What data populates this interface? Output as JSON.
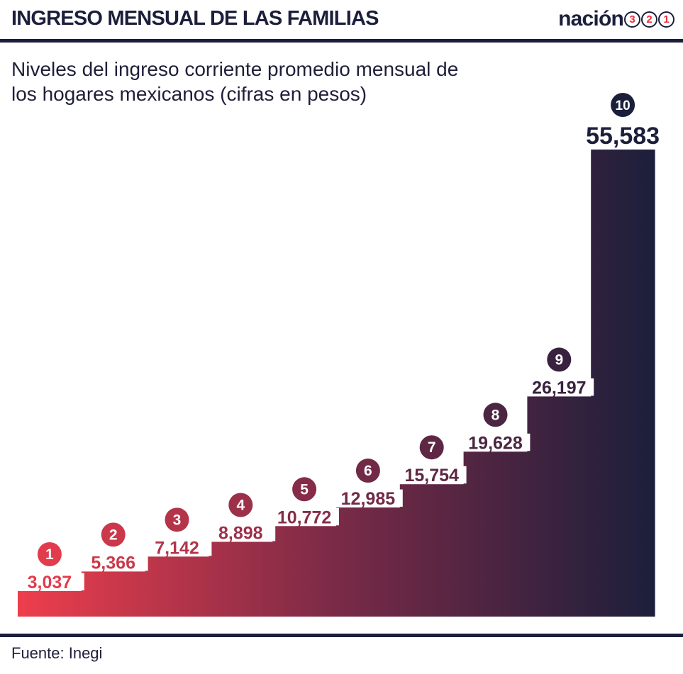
{
  "header": {
    "title": "INGRESO MENSUAL DE LAS FAMILIAS",
    "logo_word": "nación",
    "logo_numbers": [
      "3",
      "2",
      "1"
    ]
  },
  "subtitle": "Niveles del ingreso corriente promedio mensual de los hogares mexicanos (cifras en pesos)",
  "source": "Fuente: Inegi",
  "colors": {
    "gradient_start": "#ee3e4c",
    "gradient_mid": "#7a2a47",
    "gradient_end": "#1c1f3b",
    "rule": "#1c1f3b",
    "text": "#1f1f3a"
  },
  "chart_data": {
    "type": "bar",
    "categories": [
      "1",
      "2",
      "3",
      "4",
      "5",
      "6",
      "7",
      "8",
      "9",
      "10"
    ],
    "values": [
      3037,
      5366,
      7142,
      8898,
      10772,
      12985,
      15754,
      19628,
      26197,
      55583
    ],
    "value_labels": [
      "3,037",
      "5,366",
      "7,142",
      "8,898",
      "10,772",
      "12,985",
      "15,754",
      "19,628",
      "26,197",
      "55,583"
    ],
    "title": "INGRESO MENSUAL DE LAS FAMILIAS",
    "subtitle": "Niveles del ingreso corriente promedio mensual de los hogares mexicanos (cifras en pesos)",
    "xlabel": "",
    "ylabel": "",
    "grid": false,
    "legend": "none",
    "style": "stepped bars with horizontal color gradient"
  }
}
